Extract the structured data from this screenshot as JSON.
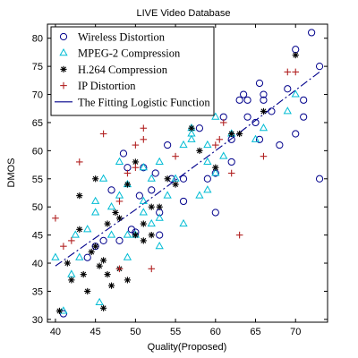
{
  "chart_data": {
    "type": "scatter",
    "title": "LIVE Video Database",
    "xlabel": "Quality(Proposed)",
    "ylabel": "DMOS",
    "xlim": [
      39,
      74
    ],
    "ylim": [
      29.5,
      82.5
    ],
    "xticks": [
      40,
      45,
      50,
      55,
      60,
      65,
      70
    ],
    "yticks": [
      30,
      35,
      40,
      45,
      50,
      55,
      60,
      65,
      70,
      75,
      80
    ],
    "grid": false,
    "legend_position": "top-left",
    "series": [
      {
        "name": "Wireless Distortion",
        "marker": "circle",
        "color": "#00008b",
        "points": [
          [
            41,
            31
          ],
          [
            44,
            41
          ],
          [
            45,
            43
          ],
          [
            46,
            44
          ],
          [
            47,
            53
          ],
          [
            48,
            44
          ],
          [
            48.5,
            59.5
          ],
          [
            49,
            57
          ],
          [
            49.5,
            46
          ],
          [
            50,
            45.5
          ],
          [
            50.5,
            52
          ],
          [
            51,
            57
          ],
          [
            52,
            53
          ],
          [
            52.5,
            56
          ],
          [
            53,
            45
          ],
          [
            53,
            49
          ],
          [
            54,
            61
          ],
          [
            54.5,
            55
          ],
          [
            56,
            51
          ],
          [
            56,
            55
          ],
          [
            58,
            64
          ],
          [
            59,
            55
          ],
          [
            60,
            49
          ],
          [
            60,
            56
          ],
          [
            61,
            66
          ],
          [
            62,
            58
          ],
          [
            62,
            62
          ],
          [
            63,
            69
          ],
          [
            63.5,
            70
          ],
          [
            64,
            66
          ],
          [
            64,
            69
          ],
          [
            65,
            65
          ],
          [
            65.5,
            62
          ],
          [
            65.5,
            72
          ],
          [
            66,
            69
          ],
          [
            66,
            70
          ],
          [
            67,
            67
          ],
          [
            68,
            61
          ],
          [
            69,
            71
          ],
          [
            70,
            63
          ],
          [
            70,
            78
          ],
          [
            71,
            66
          ],
          [
            71,
            69
          ],
          [
            72,
            81
          ],
          [
            73,
            75
          ],
          [
            73,
            55
          ]
        ]
      },
      {
        "name": "MPEG-2 Compression",
        "marker": "triangle",
        "color": "#00bcd4",
        "points": [
          [
            40,
            41
          ],
          [
            41,
            31.5
          ],
          [
            42,
            38
          ],
          [
            42.5,
            45
          ],
          [
            43,
            41
          ],
          [
            44,
            46
          ],
          [
            45,
            49
          ],
          [
            45,
            51
          ],
          [
            45.5,
            33
          ],
          [
            46,
            55
          ],
          [
            47,
            50
          ],
          [
            47,
            45
          ],
          [
            48,
            52
          ],
          [
            48,
            58
          ],
          [
            49,
            41
          ],
          [
            49,
            45
          ],
          [
            49,
            54
          ],
          [
            50,
            45
          ],
          [
            51,
            49
          ],
          [
            51,
            57
          ],
          [
            51,
            51
          ],
          [
            52,
            47
          ],
          [
            52,
            55
          ],
          [
            53,
            43
          ],
          [
            53,
            48
          ],
          [
            53,
            58
          ],
          [
            54,
            52
          ],
          [
            55,
            55
          ],
          [
            56,
            47
          ],
          [
            56,
            61
          ],
          [
            57,
            64
          ],
          [
            57,
            63
          ],
          [
            57,
            62
          ],
          [
            58,
            52
          ],
          [
            59,
            53
          ],
          [
            59,
            58
          ],
          [
            59,
            61
          ],
          [
            60,
            66
          ],
          [
            60,
            56
          ],
          [
            61,
            59
          ],
          [
            62,
            63
          ],
          [
            65,
            62
          ],
          [
            66,
            64
          ],
          [
            69,
            67
          ],
          [
            70,
            70
          ]
        ]
      },
      {
        "name": "H.264 Compression",
        "marker": "asterisk",
        "color": "#000000",
        "points": [
          [
            40.5,
            31.5
          ],
          [
            41.5,
            40
          ],
          [
            42,
            37
          ],
          [
            43,
            52
          ],
          [
            43,
            46
          ],
          [
            43.5,
            38
          ],
          [
            44,
            35
          ],
          [
            44.5,
            42
          ],
          [
            45,
            55
          ],
          [
            45,
            43
          ],
          [
            45.5,
            39.5
          ],
          [
            46,
            32
          ],
          [
            46,
            40.5
          ],
          [
            46.5,
            47
          ],
          [
            46.5,
            38
          ],
          [
            47,
            36
          ],
          [
            47.5,
            49
          ],
          [
            48,
            48
          ],
          [
            48,
            39
          ],
          [
            49,
            54
          ],
          [
            49,
            37
          ],
          [
            50,
            45
          ],
          [
            50,
            58
          ],
          [
            51,
            47
          ],
          [
            51,
            44
          ],
          [
            52,
            45
          ],
          [
            52,
            50
          ],
          [
            53,
            50
          ],
          [
            54,
            55
          ],
          [
            55,
            54
          ],
          [
            57,
            64
          ],
          [
            58,
            60
          ],
          [
            60,
            57
          ],
          [
            62,
            63
          ],
          [
            63,
            63
          ],
          [
            66,
            67
          ],
          [
            70,
            77
          ]
        ]
      },
      {
        "name": "IP Distortion",
        "marker": "plus",
        "color": "#b22222",
        "points": [
          [
            40,
            48
          ],
          [
            41,
            43
          ],
          [
            42,
            44
          ],
          [
            43,
            58
          ],
          [
            46,
            63
          ],
          [
            48,
            39
          ],
          [
            48,
            51
          ],
          [
            49,
            56
          ],
          [
            50,
            61
          ],
          [
            50,
            57
          ],
          [
            51,
            62
          ],
          [
            51,
            64
          ],
          [
            52,
            39
          ],
          [
            55,
            67
          ],
          [
            55,
            59
          ],
          [
            57,
            73
          ],
          [
            59,
            70
          ],
          [
            60,
            61
          ],
          [
            60.5,
            62
          ],
          [
            61,
            65
          ],
          [
            62,
            56
          ],
          [
            63,
            45
          ],
          [
            66,
            59
          ],
          [
            69,
            74
          ],
          [
            70,
            74
          ]
        ]
      }
    ],
    "fit_line": {
      "name": "The Fitting Logistic Function",
      "style": "dash-dot",
      "color": "#00008b",
      "points": [
        [
          40,
          39.5
        ],
        [
          50,
          49.5
        ],
        [
          60,
          60
        ],
        [
          73,
          74
        ]
      ]
    }
  }
}
